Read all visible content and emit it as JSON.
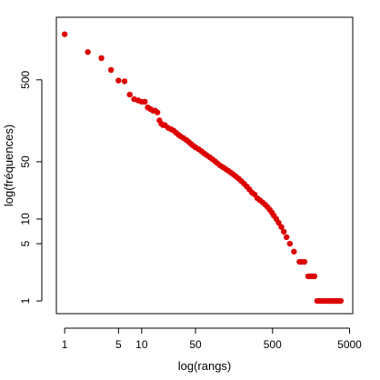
{
  "chart_data": {
    "type": "scatter",
    "title": "",
    "xlabel": "log(rangs)",
    "ylabel": "log(fréquences)",
    "x_scale": "log",
    "y_scale": "log",
    "xlim": [
      0.78,
      5500
    ],
    "ylim": [
      0.7,
      2900
    ],
    "x_ticks": [
      {
        "value": 1,
        "label": "1"
      },
      {
        "value": 5,
        "label": "5"
      },
      {
        "value": 10,
        "label": "10"
      },
      {
        "value": 50,
        "label": "50"
      },
      {
        "value": 500,
        "label": "500"
      },
      {
        "value": 5000,
        "label": "5000"
      }
    ],
    "y_ticks": [
      {
        "value": 1,
        "label": "1"
      },
      {
        "value": 5,
        "label": "5"
      },
      {
        "value": 10,
        "label": "10"
      },
      {
        "value": 50,
        "label": "50"
      },
      {
        "value": 500,
        "label": "500"
      }
    ],
    "grid": false,
    "marker_color": "#dd0000",
    "series": [
      {
        "name": "",
        "points": [
          [
            1,
            1800
          ],
          [
            2,
            1090
          ],
          [
            3,
            920
          ],
          [
            4,
            660
          ],
          [
            5,
            490
          ],
          [
            6,
            480
          ],
          [
            7,
            330
          ],
          [
            8,
            290
          ],
          [
            9,
            280
          ],
          [
            10,
            270
          ],
          [
            11,
            270
          ],
          [
            12,
            230
          ],
          [
            13,
            220
          ],
          [
            14,
            210
          ],
          [
            15,
            210
          ],
          [
            16,
            200
          ],
          [
            17,
            160
          ],
          [
            18,
            145
          ],
          [
            19,
            140
          ],
          [
            20,
            140
          ],
          [
            22,
            130
          ],
          [
            24,
            125
          ],
          [
            26,
            120
          ],
          [
            28,
            113
          ],
          [
            30,
            107
          ],
          [
            32,
            102
          ],
          [
            35,
            97
          ],
          [
            38,
            92
          ],
          [
            41,
            87
          ],
          [
            44,
            82
          ],
          [
            47,
            78
          ],
          [
            50,
            75
          ],
          [
            55,
            71
          ],
          [
            60,
            67
          ],
          [
            65,
            63
          ],
          [
            70,
            60
          ],
          [
            76,
            57
          ],
          [
            82,
            54
          ],
          [
            89,
            51
          ],
          [
            96,
            48
          ],
          [
            104,
            45
          ],
          [
            113,
            43
          ],
          [
            122,
            41
          ],
          [
            132,
            39
          ],
          [
            143,
            37
          ],
          [
            155,
            35
          ],
          [
            168,
            33
          ],
          [
            182,
            31
          ],
          [
            197,
            29
          ],
          [
            213,
            27
          ],
          [
            231,
            25
          ],
          [
            250,
            23
          ],
          [
            270,
            21
          ],
          [
            292,
            20
          ],
          [
            316,
            18
          ],
          [
            342,
            17
          ],
          [
            370,
            16
          ],
          [
            400,
            15
          ],
          [
            430,
            14
          ],
          [
            460,
            13
          ],
          [
            490,
            12
          ],
          [
            520,
            11
          ],
          [
            560,
            10
          ],
          [
            600,
            9
          ],
          [
            650,
            8
          ],
          [
            700,
            7
          ],
          [
            760,
            6
          ],
          [
            840,
            5
          ],
          [
            950,
            4
          ],
          [
            1120,
            3
          ],
          [
            1200,
            3
          ],
          [
            1300,
            3
          ],
          [
            1450,
            2
          ],
          [
            1550,
            2
          ],
          [
            1650,
            2
          ],
          [
            1750,
            2
          ],
          [
            1900,
            1
          ],
          [
            2050,
            1
          ],
          [
            2200,
            1
          ],
          [
            2350,
            1
          ],
          [
            2500,
            1
          ],
          [
            2650,
            1
          ],
          [
            2800,
            1
          ],
          [
            2950,
            1
          ],
          [
            3100,
            1
          ],
          [
            3250,
            1
          ],
          [
            3400,
            1
          ],
          [
            3550,
            1
          ],
          [
            3700,
            1
          ],
          [
            3850,
            1
          ]
        ]
      }
    ]
  }
}
